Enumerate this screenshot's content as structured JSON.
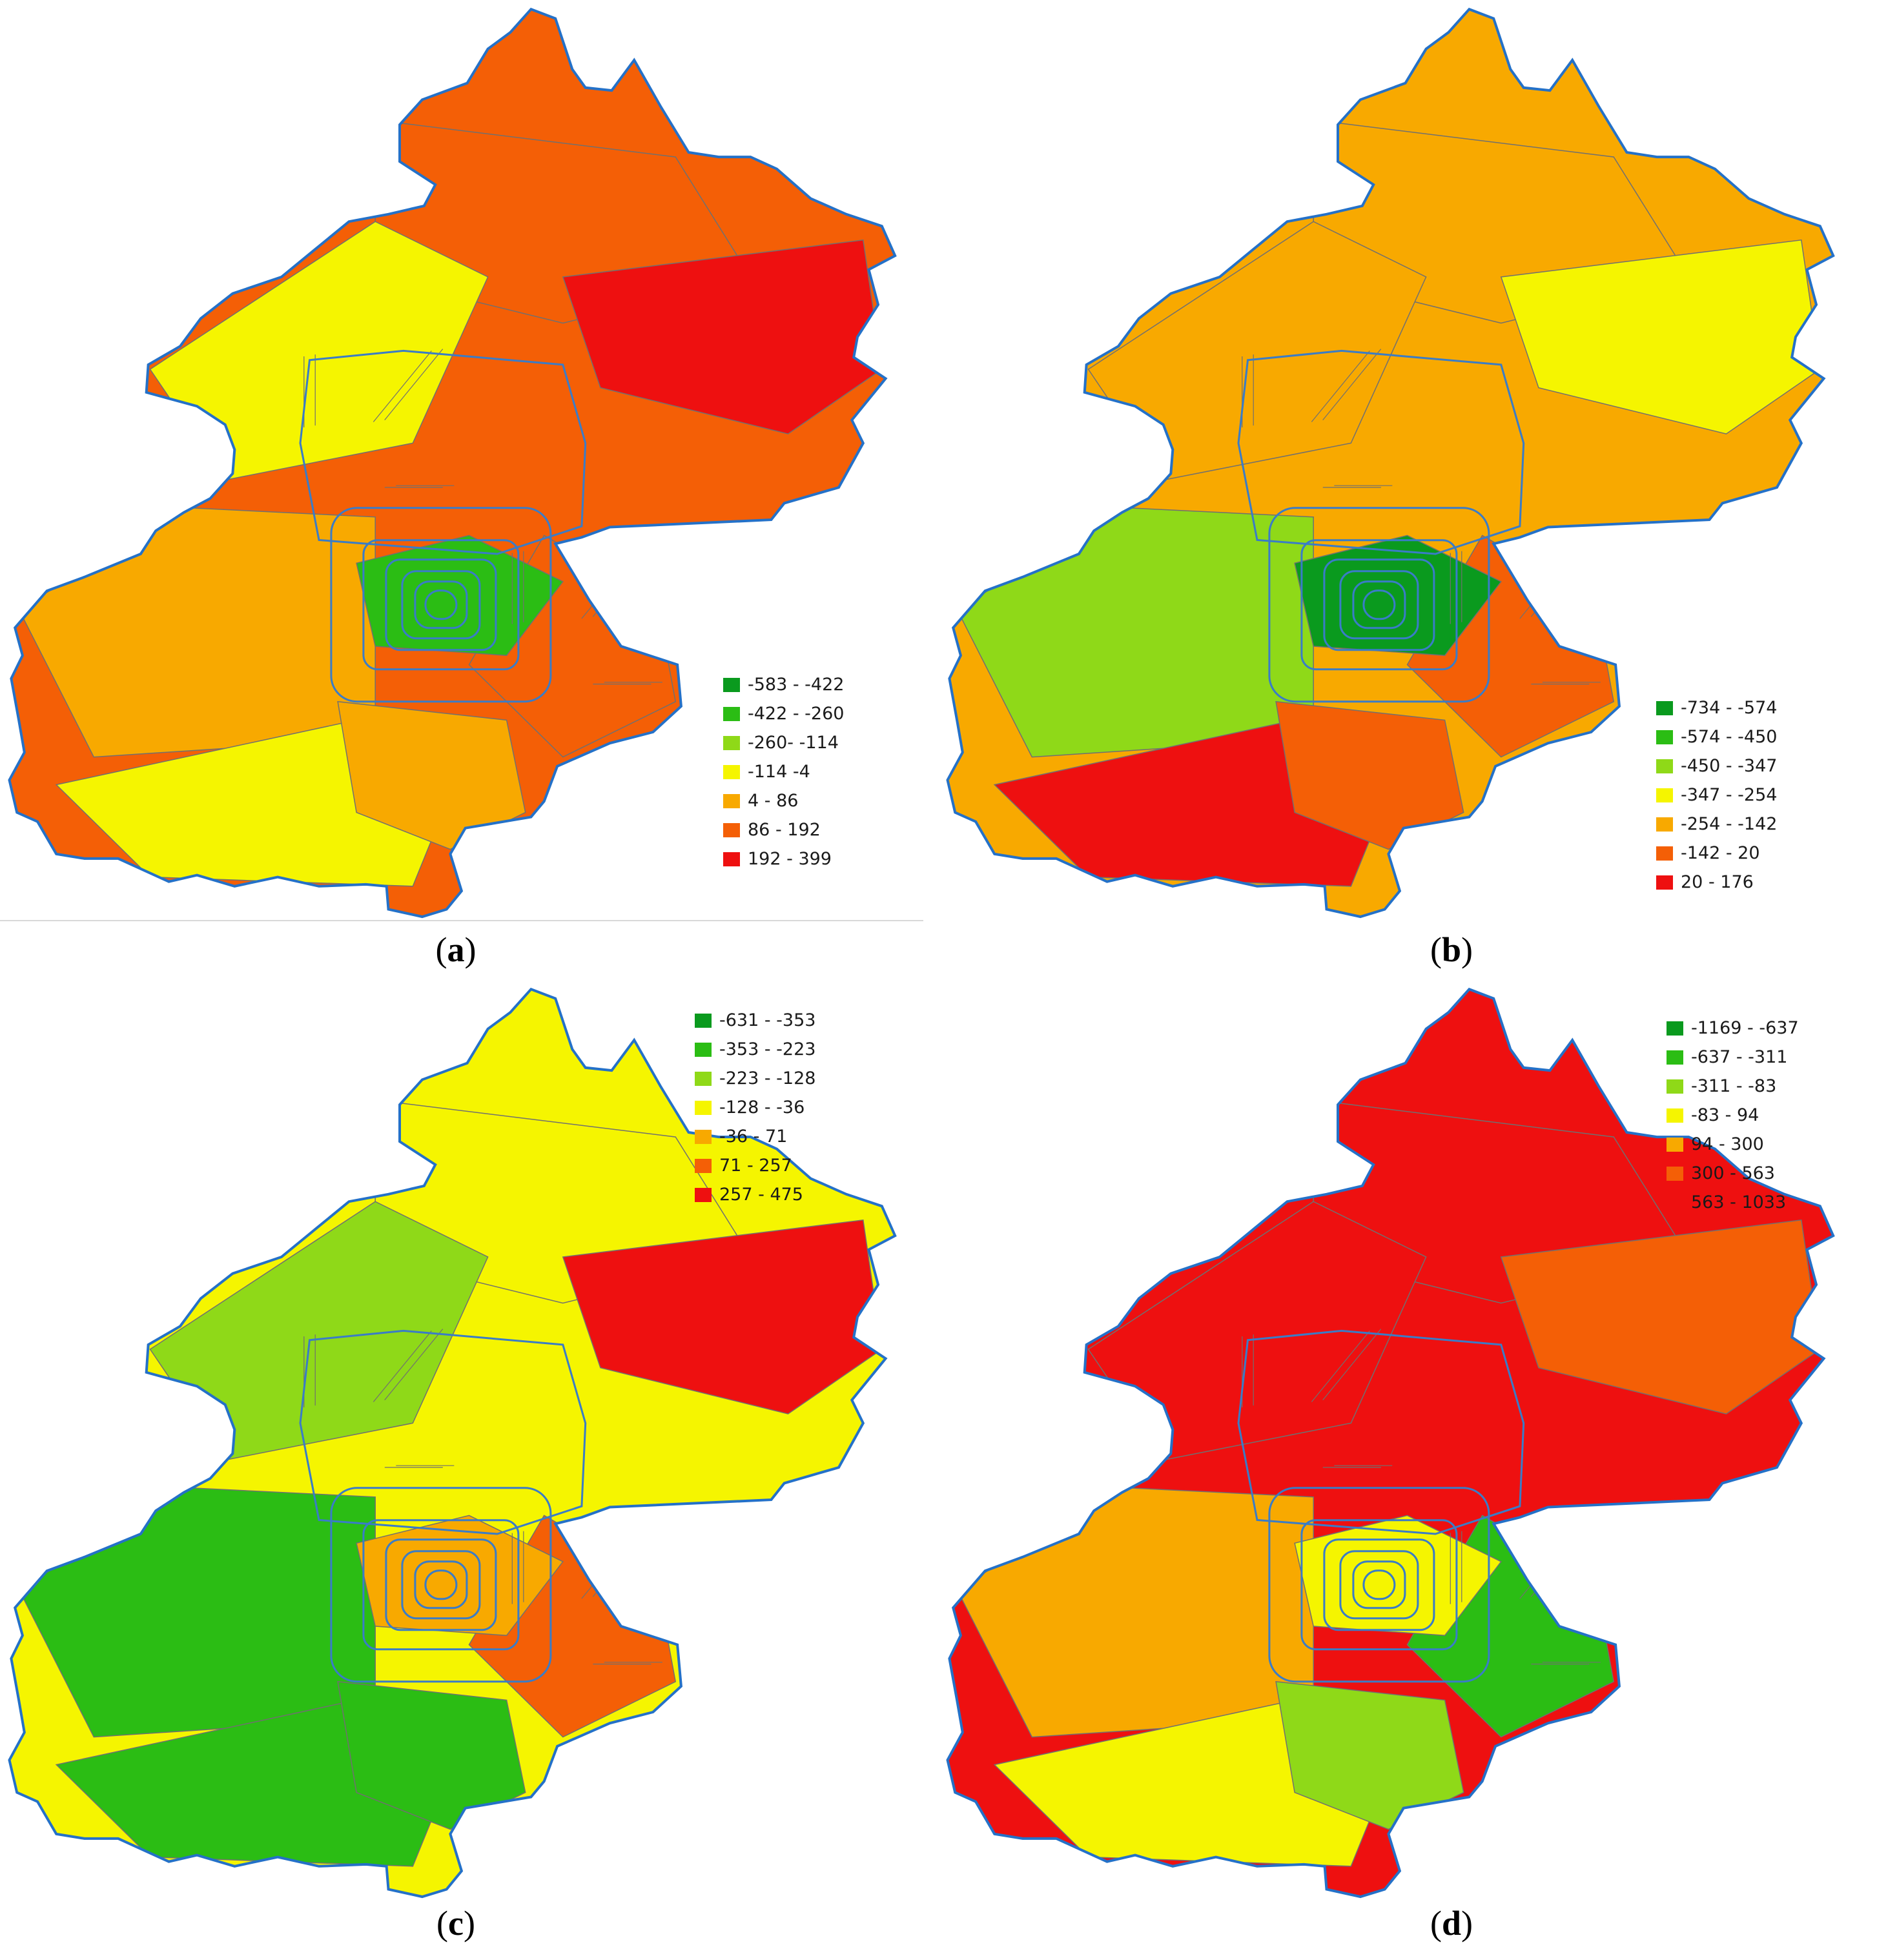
{
  "colors": {
    "classes": [
      "#0a9a1e",
      "#2bbd14",
      "#8fd918",
      "#f5f500",
      "#f8a900",
      "#f45f06",
      "#ee1010"
    ],
    "boundary": "#2471c8",
    "district_lines": "#707070",
    "road_lines": "#3a7cc7"
  },
  "panels": [
    {
      "caption": {
        "open": "(",
        "label": "a",
        "close": ")"
      },
      "legend": [
        "-583 - -422",
        "-422 - -260",
        "-260- -114",
        "-114 -4",
        "4 - 86",
        "86 - 192",
        "192 - 399"
      ],
      "fills": {
        "north": 5,
        "northeast": 6,
        "northwest": 3,
        "west": 4,
        "southwest": 3,
        "southeast": 5,
        "south": 4,
        "center": 1
      }
    },
    {
      "caption": {
        "open": "(",
        "label": "b",
        "close": ")"
      },
      "legend": [
        "-734 - -574",
        "-574 - -450",
        "-450 - -347",
        "-347 - -254",
        "-254 - -142",
        "-142 - 20",
        "20 - 176"
      ],
      "fills": {
        "north": 4,
        "northeast": 3,
        "northwest": 4,
        "west": 2,
        "southwest": 6,
        "southeast": 5,
        "south": 5,
        "center": 0
      }
    },
    {
      "caption": {
        "open": "(",
        "label": "c",
        "close": ")"
      },
      "legend": [
        "-631 - -353",
        "-353 - -223",
        "-223 - -128",
        "-128 - -36",
        "-36 - 71",
        "71 - 257",
        "257 - 475"
      ],
      "fills": {
        "north": 3,
        "northeast": 6,
        "northwest": 2,
        "west": 1,
        "southwest": 1,
        "southeast": 5,
        "south": 1,
        "center": 4
      }
    },
    {
      "caption": {
        "open": "(",
        "label": "d",
        "close": ")"
      },
      "legend": [
        "-1169 - -637",
        "-637 - -311",
        "-311 - -83",
        "-83 - 94",
        "94 - 300",
        "300 - 563",
        "563 - 1033"
      ],
      "fills": {
        "north": 6,
        "northeast": 5,
        "northwest": 6,
        "west": 4,
        "southwest": 3,
        "southeast": 1,
        "south": 2,
        "center": 3
      }
    }
  ]
}
